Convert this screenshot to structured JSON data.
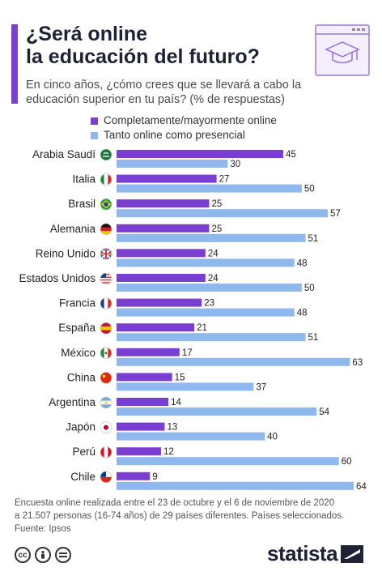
{
  "header": {
    "title_line1": "¿Será online",
    "title_line2": "la educación del futuro?",
    "subtitle": "En cinco años, ¿cómo crees que se llevará a cabo la educación superior en tu país? (% de respuestas)"
  },
  "colors": {
    "accent": "#7a3fd0",
    "series1": "#7a3fd0",
    "series2": "#8fb9ec"
  },
  "chart_data": {
    "type": "bar",
    "orientation": "horizontal",
    "categories": [
      "Arabia Saudí",
      "Italia",
      "Brasil",
      "Alemania",
      "Reino Unido",
      "Estados Unidos",
      "Francia",
      "España",
      "México",
      "China",
      "Argentina",
      "Japón",
      "Perú",
      "Chile"
    ],
    "series": [
      {
        "name": "Completamente/mayormente online",
        "values": [
          45,
          27,
          25,
          25,
          24,
          24,
          23,
          21,
          17,
          15,
          14,
          13,
          12,
          9
        ]
      },
      {
        "name": "Tanto online como presencial",
        "values": [
          30,
          50,
          57,
          51,
          48,
          50,
          48,
          51,
          63,
          37,
          54,
          40,
          60,
          64
        ]
      }
    ],
    "title": "",
    "xlabel": "",
    "ylabel": "",
    "xlim": [
      0,
      64
    ],
    "grid": false,
    "legend": "top"
  },
  "footer": {
    "note_line1": "Encuesta online realizada entre el 23 de octubre y el 6 de noviembre de 2020",
    "note_line2": "a 21.507 personas (16-74 años) de 29 países diferentes. Países seleccionados.",
    "source": "Fuente: Ipsos"
  },
  "brand": {
    "name": "statista"
  }
}
